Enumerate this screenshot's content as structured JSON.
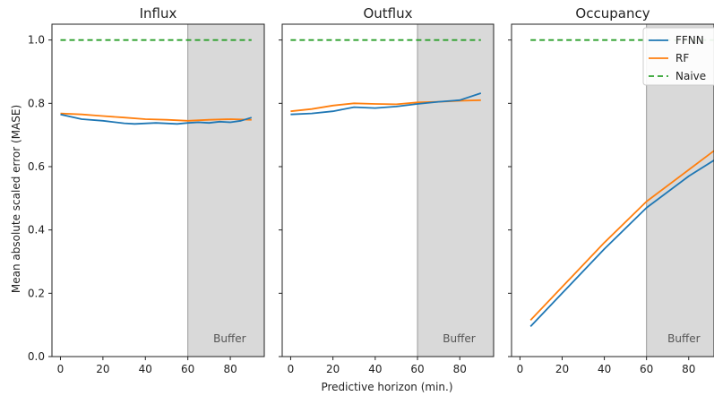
{
  "chart_data": {
    "type": "line",
    "ylabel": "Mean absolute scaled error (MASE)",
    "xlabel": "Predictive horizon (min.)",
    "ylim": [
      0,
      1.05
    ],
    "yticks": [
      0.0,
      0.2,
      0.4,
      0.6,
      0.8,
      1.0
    ],
    "ytick_labels": [
      "0.0",
      "0.2",
      "0.4",
      "0.6",
      "0.8",
      "1.0"
    ],
    "xticks": [
      0,
      20,
      40,
      60,
      80
    ],
    "xtick_labels": [
      "0",
      "20",
      "40",
      "60",
      "80"
    ],
    "grid": false,
    "legend": {
      "placement": "top-right",
      "entries": [
        {
          "name": "FFNN",
          "color": "#1f77b4",
          "style": "solid"
        },
        {
          "name": "RF",
          "color": "#ff7f0e",
          "style": "solid"
        },
        {
          "name": "Naive",
          "color": "#2ca02c",
          "style": "dashed"
        }
      ]
    },
    "buffer": {
      "label": "Buffer",
      "x_start": 60,
      "color": "#d9d9d9"
    },
    "panels": [
      {
        "title": "Influx",
        "xlim": [
          -4,
          96
        ],
        "series": [
          {
            "name": "FFNN",
            "x": [
              0,
              10,
              20,
              30,
              35,
              45,
              55,
              60,
              65,
              70,
              75,
              80,
              85,
              90
            ],
            "y": [
              0.765,
              0.75,
              0.745,
              0.737,
              0.735,
              0.738,
              0.735,
              0.738,
              0.74,
              0.738,
              0.742,
              0.74,
              0.745,
              0.755
            ]
          },
          {
            "name": "RF",
            "x": [
              0,
              10,
              20,
              30,
              40,
              50,
              60,
              70,
              80,
              90
            ],
            "y": [
              0.768,
              0.765,
              0.76,
              0.755,
              0.75,
              0.748,
              0.745,
              0.748,
              0.75,
              0.748
            ]
          },
          {
            "name": "Naive",
            "x": [
              0,
              90
            ],
            "y": [
              1.0,
              1.0
            ]
          }
        ]
      },
      {
        "title": "Outflux",
        "xlim": [
          -4,
          96
        ],
        "series": [
          {
            "name": "FFNN",
            "x": [
              0,
              10,
              20,
              30,
              40,
              50,
              60,
              70,
              80,
              90
            ],
            "y": [
              0.765,
              0.768,
              0.775,
              0.788,
              0.785,
              0.79,
              0.798,
              0.805,
              0.81,
              0.832
            ]
          },
          {
            "name": "RF",
            "x": [
              0,
              10,
              20,
              30,
              40,
              50,
              60,
              70,
              80,
              90
            ],
            "y": [
              0.775,
              0.782,
              0.793,
              0.8,
              0.798,
              0.797,
              0.803,
              0.805,
              0.808,
              0.81
            ]
          },
          {
            "name": "Naive",
            "x": [
              0,
              90
            ],
            "y": [
              1.0,
              1.0
            ]
          }
        ]
      },
      {
        "title": "Occupancy",
        "xlim": [
          -4,
          92
        ],
        "series": [
          {
            "name": "FFNN",
            "x": [
              5,
              20,
              40,
              60,
              80,
              92
            ],
            "y": [
              0.095,
              0.2,
              0.34,
              0.47,
              0.57,
              0.62
            ]
          },
          {
            "name": "RF",
            "x": [
              5,
              20,
              40,
              60,
              80,
              92
            ],
            "y": [
              0.115,
              0.22,
              0.36,
              0.49,
              0.59,
              0.65
            ]
          },
          {
            "name": "Naive",
            "x": [
              5,
              92
            ],
            "y": [
              1.0,
              1.0
            ]
          }
        ]
      }
    ]
  }
}
